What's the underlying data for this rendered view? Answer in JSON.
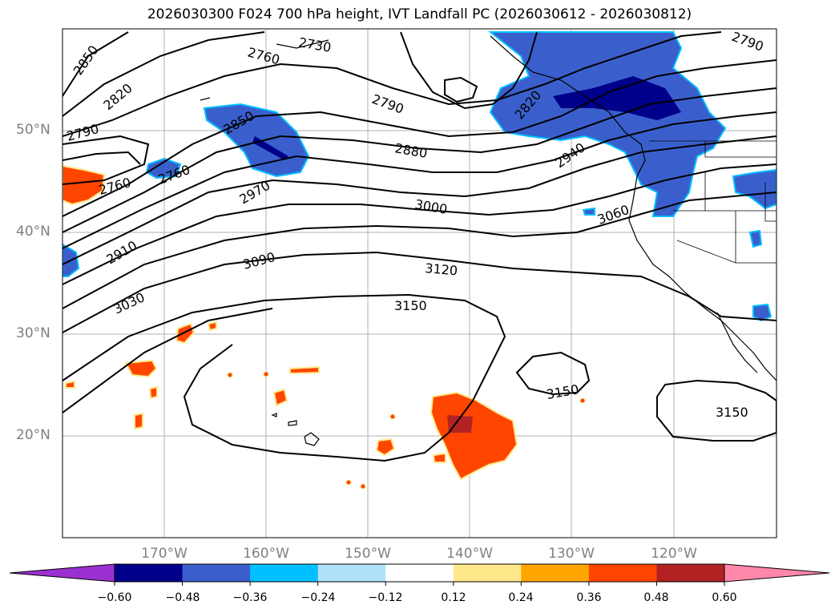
{
  "title": "2026030300 F024 700 hPa height, IVT Landfall PC (2026030612 - 2026030812)",
  "lat_labels": [
    "50°N",
    "40°N",
    "30°N",
    "20°N"
  ],
  "lon_labels": [
    "170°W",
    "160°W",
    "150°W",
    "140°W",
    "130°W",
    "120°W"
  ],
  "contour_labels": [
    "2850",
    "2820",
    "2790",
    "2760",
    "2730",
    "2760",
    "2790",
    "2820",
    "2850",
    "2880",
    "2790",
    "2760",
    "2940",
    "2970",
    "3000",
    "3060",
    "2910",
    "3090",
    "3120",
    "3030",
    "3150",
    "3150",
    "3150"
  ],
  "colorbar": {
    "tick_labels": [
      "−0.60",
      "−0.48",
      "−0.36",
      "−0.24",
      "−0.12",
      "0.12",
      "0.24",
      "0.36",
      "0.48",
      "0.60"
    ],
    "colors": [
      "#9b30d0",
      "#00008b",
      "#3a5fcd",
      "#00bfff",
      "#b0e0fa",
      "#ffffff",
      "#ffe88a",
      "#ffa500",
      "#ff4500",
      "#b22222",
      "#ff88aa"
    ]
  }
}
